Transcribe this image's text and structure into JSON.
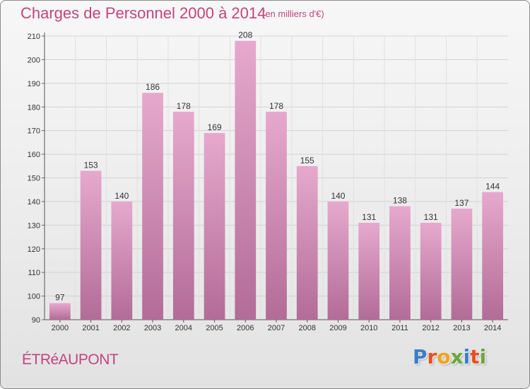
{
  "header": {
    "title": "Charges de Personnel 2000 à 2014",
    "unit": "(en milliers d'€)"
  },
  "footer": {
    "place": "ÉTRéAUPONT",
    "brand": "Proxiti"
  },
  "colors": {
    "accent": "#c2447f",
    "bar_top": "#e6a9cd",
    "bar_bottom": "#b26c97",
    "brand_letters": [
      "#3a7fc6",
      "#e84e24",
      "#f2a31b",
      "#6aa83a",
      "#3a7fc6",
      "#e84e24",
      "#6aa83a"
    ]
  },
  "chart_data": {
    "type": "bar",
    "title": "Charges de Personnel 2000 à 2014",
    "subtitle": "(en milliers d'€)",
    "categories": [
      "2000",
      "2001",
      "2002",
      "2003",
      "2004",
      "2005",
      "2006",
      "2007",
      "2008",
      "2009",
      "2010",
      "2011",
      "2012",
      "2013",
      "2014"
    ],
    "values": [
      97,
      153,
      140,
      186,
      178,
      169,
      208,
      178,
      155,
      140,
      131,
      138,
      131,
      137,
      144
    ],
    "ylim": [
      90,
      210
    ],
    "yticks": [
      90,
      100,
      110,
      120,
      130,
      140,
      150,
      160,
      170,
      180,
      190,
      200,
      210
    ],
    "grid": true,
    "data_labels": true
  }
}
